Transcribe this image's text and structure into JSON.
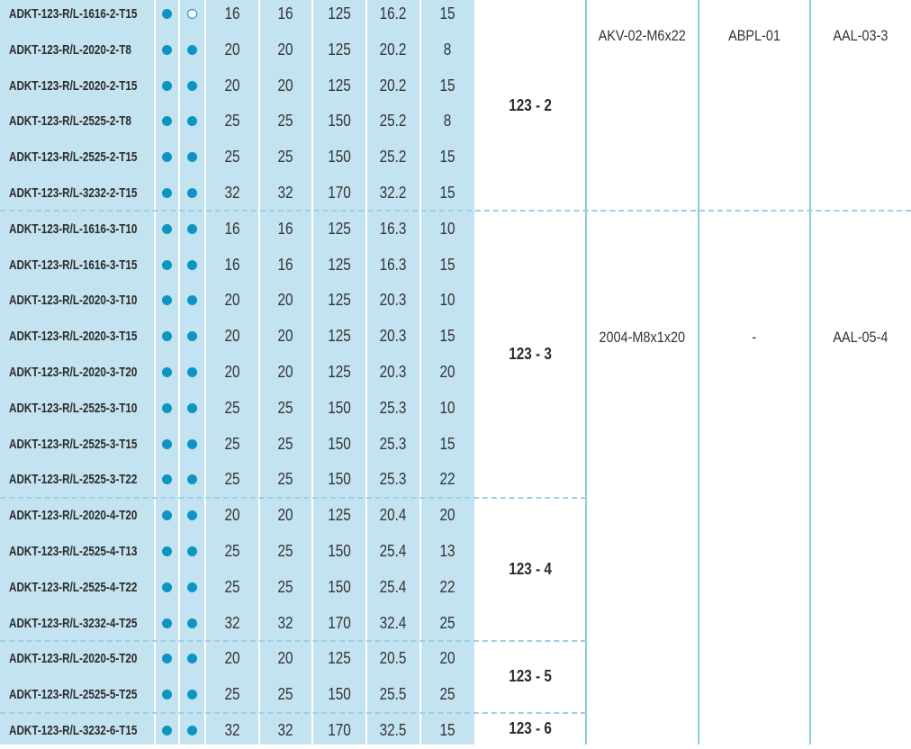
{
  "colors": {
    "panel": "#c4e3f0",
    "dot": "#0e94c3",
    "rule": "#8ccbdd"
  },
  "rows": [
    {
      "code": "ADKT-123-R/L-1616-2-T15",
      "d1": "filled",
      "d2": "hollow",
      "v": [
        "16",
        "16",
        "125",
        "16.2",
        "15"
      ]
    },
    {
      "code": "ADKT-123-R/L-2020-2-T8",
      "d1": "filled",
      "d2": "filled",
      "v": [
        "20",
        "20",
        "125",
        "20.2",
        "8"
      ]
    },
    {
      "code": "ADKT-123-R/L-2020-2-T15",
      "d1": "filled",
      "d2": "filled",
      "v": [
        "20",
        "20",
        "125",
        "20.2",
        "15"
      ]
    },
    {
      "code": "ADKT-123-R/L-2525-2-T8",
      "d1": "filled",
      "d2": "filled",
      "v": [
        "25",
        "25",
        "150",
        "25.2",
        "8"
      ]
    },
    {
      "code": "ADKT-123-R/L-2525-2-T15",
      "d1": "filled",
      "d2": "filled",
      "v": [
        "25",
        "25",
        "150",
        "25.2",
        "15"
      ]
    },
    {
      "code": "ADKT-123-R/L-3232-2-T15",
      "d1": "filled",
      "d2": "filled",
      "v": [
        "32",
        "32",
        "170",
        "32.2",
        "15"
      ]
    },
    {
      "code": "ADKT-123-R/L-1616-3-T10",
      "d1": "filled",
      "d2": "filled",
      "v": [
        "16",
        "16",
        "125",
        "16.3",
        "10"
      ]
    },
    {
      "code": "ADKT-123-R/L-1616-3-T15",
      "d1": "filled",
      "d2": "filled",
      "v": [
        "16",
        "16",
        "125",
        "16.3",
        "15"
      ]
    },
    {
      "code": "ADKT-123-R/L-2020-3-T10",
      "d1": "filled",
      "d2": "filled",
      "v": [
        "20",
        "20",
        "125",
        "20.3",
        "10"
      ]
    },
    {
      "code": "ADKT-123-R/L-2020-3-T15",
      "d1": "filled",
      "d2": "filled",
      "v": [
        "20",
        "20",
        "125",
        "20.3",
        "15"
      ]
    },
    {
      "code": "ADKT-123-R/L-2020-3-T20",
      "d1": "filled",
      "d2": "filled",
      "v": [
        "20",
        "20",
        "125",
        "20.3",
        "20"
      ]
    },
    {
      "code": "ADKT-123-R/L-2525-3-T10",
      "d1": "filled",
      "d2": "filled",
      "v": [
        "25",
        "25",
        "150",
        "25.3",
        "10"
      ]
    },
    {
      "code": "ADKT-123-R/L-2525-3-T15",
      "d1": "filled",
      "d2": "filled",
      "v": [
        "25",
        "25",
        "150",
        "25.3",
        "15"
      ]
    },
    {
      "code": "ADKT-123-R/L-2525-3-T22",
      "d1": "filled",
      "d2": "filled",
      "v": [
        "25",
        "25",
        "150",
        "25.3",
        "22"
      ]
    },
    {
      "code": "ADKT-123-R/L-2020-4-T20",
      "d1": "filled",
      "d2": "filled",
      "v": [
        "20",
        "20",
        "125",
        "20.4",
        "20"
      ]
    },
    {
      "code": "ADKT-123-R/L-2525-4-T13",
      "d1": "filled",
      "d2": "filled",
      "v": [
        "25",
        "25",
        "150",
        "25.4",
        "13"
      ]
    },
    {
      "code": "ADKT-123-R/L-2525-4-T22",
      "d1": "filled",
      "d2": "filled",
      "v": [
        "25",
        "25",
        "150",
        "25.4",
        "22"
      ]
    },
    {
      "code": "ADKT-123-R/L-3232-4-T25",
      "d1": "filled",
      "d2": "filled",
      "v": [
        "32",
        "32",
        "170",
        "32.4",
        "25"
      ]
    },
    {
      "code": "ADKT-123-R/L-2020-5-T20",
      "d1": "filled",
      "d2": "filled",
      "v": [
        "20",
        "20",
        "125",
        "20.5",
        "20"
      ]
    },
    {
      "code": "ADKT-123-R/L-2525-5-T25",
      "d1": "filled",
      "d2": "filled",
      "v": [
        "25",
        "25",
        "150",
        "25.5",
        "25"
      ]
    },
    {
      "code": "ADKT-123-R/L-3232-6-T15",
      "d1": "filled",
      "d2": "filled",
      "v": [
        "32",
        "32",
        "170",
        "32.5",
        "15"
      ]
    }
  ],
  "groups": [
    {
      "label": "123 - 2",
      "first_row": 0,
      "last_row": 5
    },
    {
      "label": "123 - 3",
      "first_row": 6,
      "last_row": 13
    },
    {
      "label": "123 - 4",
      "first_row": 14,
      "last_row": 17
    },
    {
      "label": "123 - 5",
      "first_row": 18,
      "last_row": 19
    },
    {
      "label": "123 - 6",
      "first_row": 20,
      "last_row": 20
    }
  ],
  "accessories": [
    {
      "screw": "AKV-02-M6x22",
      "plate": "ABPL-01",
      "key": "AAL-03-3"
    },
    {
      "screw": "2004-M8x1x20",
      "plate": "-",
      "key": "AAL-05-4"
    }
  ]
}
